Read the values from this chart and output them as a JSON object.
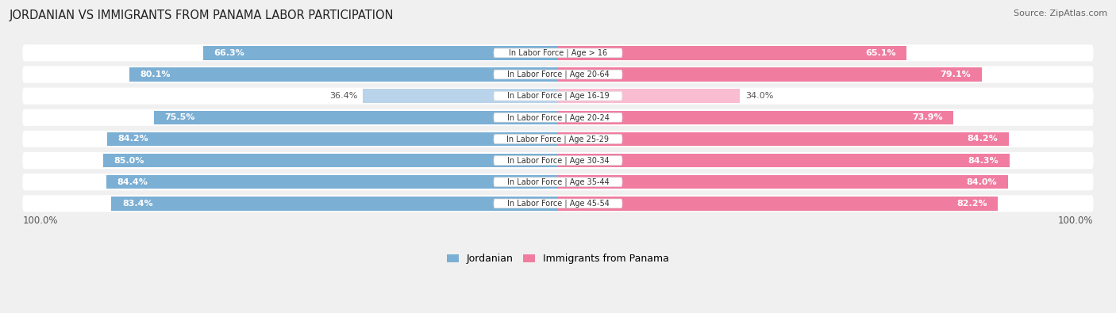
{
  "title": "JORDANIAN VS IMMIGRANTS FROM PANAMA LABOR PARTICIPATION",
  "source": "Source: ZipAtlas.com",
  "categories": [
    "In Labor Force | Age > 16",
    "In Labor Force | Age 20-64",
    "In Labor Force | Age 16-19",
    "In Labor Force | Age 20-24",
    "In Labor Force | Age 25-29",
    "In Labor Force | Age 30-34",
    "In Labor Force | Age 35-44",
    "In Labor Force | Age 45-54"
  ],
  "jordanian": [
    66.3,
    80.1,
    36.4,
    75.5,
    84.2,
    85.0,
    84.4,
    83.4
  ],
  "panama": [
    65.1,
    79.1,
    34.0,
    73.9,
    84.2,
    84.3,
    84.0,
    82.2
  ],
  "jordan_color": "#7bafd4",
  "jordan_color_light": "#b8d3ea",
  "panama_color": "#f07ca0",
  "panama_color_light": "#f9bcd0",
  "background_color": "#f0f0f0",
  "max_val": 100.0,
  "legend_jordan": "Jordanian",
  "legend_panama": "Immigrants from Panama"
}
